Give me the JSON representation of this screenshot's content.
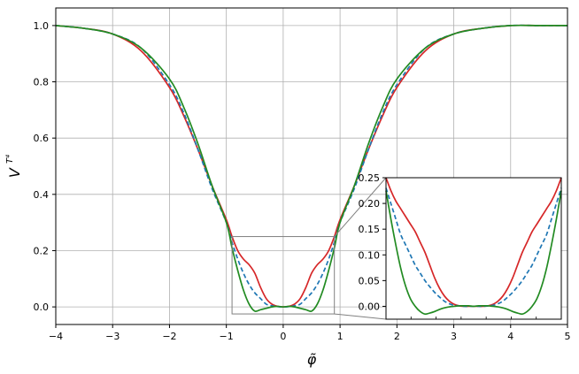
{
  "chart_data": {
    "type": "line",
    "xlabel": "φ̃",
    "ylabel_base": "V",
    "ylabel_sup": "T⁴",
    "xlim": [
      -4,
      5
    ],
    "ylim": [
      -0.0625,
      1.0625
    ],
    "xticks": [
      "−4",
      "−3",
      "−2",
      "−1",
      "0",
      "1",
      "2",
      "3",
      "4",
      "5"
    ],
    "xtick_values": [
      -4,
      -3,
      -2,
      -1,
      0,
      1,
      2,
      3,
      4,
      5
    ],
    "yticks": [
      "0.0",
      "0.2",
      "0.4",
      "0.6",
      "0.8",
      "1.0"
    ],
    "ytick_values": [
      0,
      0.2,
      0.4,
      0.6,
      0.8,
      1.0
    ],
    "grid": true,
    "series": [
      {
        "color": "#d62728",
        "style": "solid",
        "x": [
          -4,
          -3.5,
          -3,
          -2.5,
          -2,
          -1.75,
          -1.5,
          -1.25,
          -1.0,
          -0.9,
          -0.8,
          -0.7,
          -0.6,
          -0.5,
          -0.4,
          -0.3,
          -0.2,
          -0.1,
          0,
          0.1,
          0.2,
          0.3,
          0.4,
          0.5,
          0.6,
          0.7,
          0.8,
          0.9,
          1.0,
          1.25,
          1.5,
          1.75,
          2.0,
          2.5,
          3.0,
          3.5,
          4.0,
          4.5,
          5.0
        ],
        "y": [
          1.0,
          0.99,
          0.97,
          0.91,
          0.78,
          0.68,
          0.56,
          0.43,
          0.31,
          0.25,
          0.2,
          0.17,
          0.15,
          0.12,
          0.07,
          0.03,
          0.01,
          0.002,
          0.0,
          0.002,
          0.01,
          0.03,
          0.07,
          0.12,
          0.15,
          0.17,
          0.2,
          0.25,
          0.31,
          0.43,
          0.56,
          0.68,
          0.78,
          0.91,
          0.97,
          0.99,
          1.0,
          1.0,
          1.0
        ]
      },
      {
        "color": "#1f77b4",
        "style": "dashed",
        "x": [
          -4,
          -3.5,
          -3,
          -2.5,
          -2,
          -1.75,
          -1.5,
          -1.25,
          -1.0,
          -0.9,
          -0.8,
          -0.7,
          -0.6,
          -0.5,
          -0.4,
          -0.3,
          -0.2,
          -0.1,
          0,
          0.1,
          0.2,
          0.3,
          0.4,
          0.5,
          0.6,
          0.7,
          0.8,
          0.9,
          1.0,
          1.25,
          1.5,
          1.75,
          2.0,
          2.5,
          3.0,
          3.5,
          4.0,
          4.5,
          5.0
        ],
        "y": [
          1.0,
          0.99,
          0.97,
          0.92,
          0.79,
          0.69,
          0.56,
          0.42,
          0.3,
          0.23,
          0.17,
          0.12,
          0.08,
          0.05,
          0.03,
          0.01,
          0.004,
          0.001,
          0.0,
          0.001,
          0.004,
          0.01,
          0.03,
          0.05,
          0.08,
          0.12,
          0.17,
          0.23,
          0.3,
          0.42,
          0.56,
          0.69,
          0.79,
          0.92,
          0.97,
          0.99,
          1.0,
          1.0,
          1.0
        ]
      },
      {
        "color": "#228b22",
        "style": "solid",
        "x": [
          -4,
          -3.5,
          -3,
          -2.5,
          -2,
          -1.75,
          -1.5,
          -1.25,
          -1.0,
          -0.9,
          -0.8,
          -0.7,
          -0.6,
          -0.5,
          -0.4,
          -0.3,
          -0.2,
          -0.1,
          0,
          0.1,
          0.2,
          0.3,
          0.4,
          0.5,
          0.6,
          0.7,
          0.8,
          0.9,
          1.0,
          1.25,
          1.5,
          1.75,
          2.0,
          2.5,
          3.0,
          3.5,
          4.0,
          4.5,
          5.0
        ],
        "y": [
          1.0,
          0.99,
          0.97,
          0.92,
          0.81,
          0.71,
          0.58,
          0.43,
          0.3,
          0.21,
          0.13,
          0.06,
          0.01,
          -0.015,
          -0.01,
          -0.005,
          0.0,
          0.002,
          0.0,
          0.002,
          0.0,
          -0.005,
          -0.01,
          -0.015,
          0.01,
          0.06,
          0.13,
          0.21,
          0.3,
          0.43,
          0.58,
          0.71,
          0.81,
          0.92,
          0.97,
          0.99,
          1.0,
          1.0,
          1.0
        ]
      }
    ],
    "inset": {
      "xlim": [
        -0.9,
        0.9
      ],
      "ylim": [
        -0.025,
        0.25
      ],
      "yticks": [
        "0.00",
        "0.05",
        "0.10",
        "0.15",
        "0.20",
        "0.25"
      ],
      "ytick_values": [
        0,
        0.05,
        0.1,
        0.15,
        0.2,
        0.25
      ],
      "series": [
        {
          "color": "#d62728",
          "style": "solid",
          "x": [
            -0.9,
            -0.85,
            -0.8,
            -0.75,
            -0.7,
            -0.65,
            -0.6,
            -0.55,
            -0.5,
            -0.45,
            -0.4,
            -0.35,
            -0.3,
            -0.25,
            -0.2,
            -0.15,
            -0.1,
            -0.05,
            0,
            0.05,
            0.1,
            0.15,
            0.2,
            0.25,
            0.3,
            0.35,
            0.4,
            0.45,
            0.5,
            0.55,
            0.6,
            0.65,
            0.7,
            0.75,
            0.8,
            0.85,
            0.9
          ],
          "y": [
            0.25,
            0.225,
            0.205,
            0.19,
            0.175,
            0.16,
            0.145,
            0.125,
            0.105,
            0.08,
            0.055,
            0.035,
            0.02,
            0.01,
            0.004,
            0.001,
            0.0,
            0.0,
            0.0,
            0.0,
            0.0,
            0.001,
            0.004,
            0.01,
            0.02,
            0.035,
            0.055,
            0.08,
            0.105,
            0.125,
            0.145,
            0.16,
            0.175,
            0.19,
            0.205,
            0.225,
            0.25
          ]
        },
        {
          "color": "#1f77b4",
          "style": "dashed",
          "x": [
            -0.9,
            -0.85,
            -0.8,
            -0.75,
            -0.7,
            -0.65,
            -0.6,
            -0.55,
            -0.5,
            -0.45,
            -0.4,
            -0.35,
            -0.3,
            -0.25,
            -0.2,
            -0.15,
            -0.1,
            -0.05,
            0,
            0.05,
            0.1,
            0.15,
            0.2,
            0.25,
            0.3,
            0.35,
            0.4,
            0.45,
            0.5,
            0.55,
            0.6,
            0.65,
            0.7,
            0.75,
            0.8,
            0.85,
            0.9
          ],
          "y": [
            0.23,
            0.2,
            0.17,
            0.14,
            0.12,
            0.1,
            0.08,
            0.065,
            0.05,
            0.038,
            0.027,
            0.018,
            0.01,
            0.005,
            0.002,
            0.001,
            0.0,
            0.0,
            0.0,
            0.0,
            0.0,
            0.001,
            0.002,
            0.005,
            0.01,
            0.018,
            0.027,
            0.038,
            0.05,
            0.065,
            0.08,
            0.1,
            0.12,
            0.14,
            0.17,
            0.2,
            0.23
          ]
        },
        {
          "color": "#228b22",
          "style": "solid",
          "x": [
            -0.9,
            -0.85,
            -0.8,
            -0.75,
            -0.7,
            -0.65,
            -0.6,
            -0.55,
            -0.5,
            -0.45,
            -0.4,
            -0.35,
            -0.3,
            -0.25,
            -0.2,
            -0.15,
            -0.1,
            -0.05,
            0,
            0.05,
            0.1,
            0.15,
            0.2,
            0.25,
            0.3,
            0.35,
            0.4,
            0.45,
            0.5,
            0.55,
            0.6,
            0.65,
            0.7,
            0.75,
            0.8,
            0.85,
            0.9
          ],
          "y": [
            0.225,
            0.17,
            0.12,
            0.075,
            0.04,
            0.015,
            0.0,
            -0.01,
            -0.015,
            -0.013,
            -0.01,
            -0.006,
            -0.003,
            -0.001,
            0.0,
            0.001,
            0.001,
            0.001,
            0.0,
            0.001,
            0.001,
            0.001,
            0.0,
            -0.001,
            -0.003,
            -0.006,
            -0.01,
            -0.013,
            -0.015,
            -0.01,
            0.0,
            0.015,
            0.04,
            0.075,
            0.12,
            0.17,
            0.225
          ]
        }
      ]
    }
  }
}
